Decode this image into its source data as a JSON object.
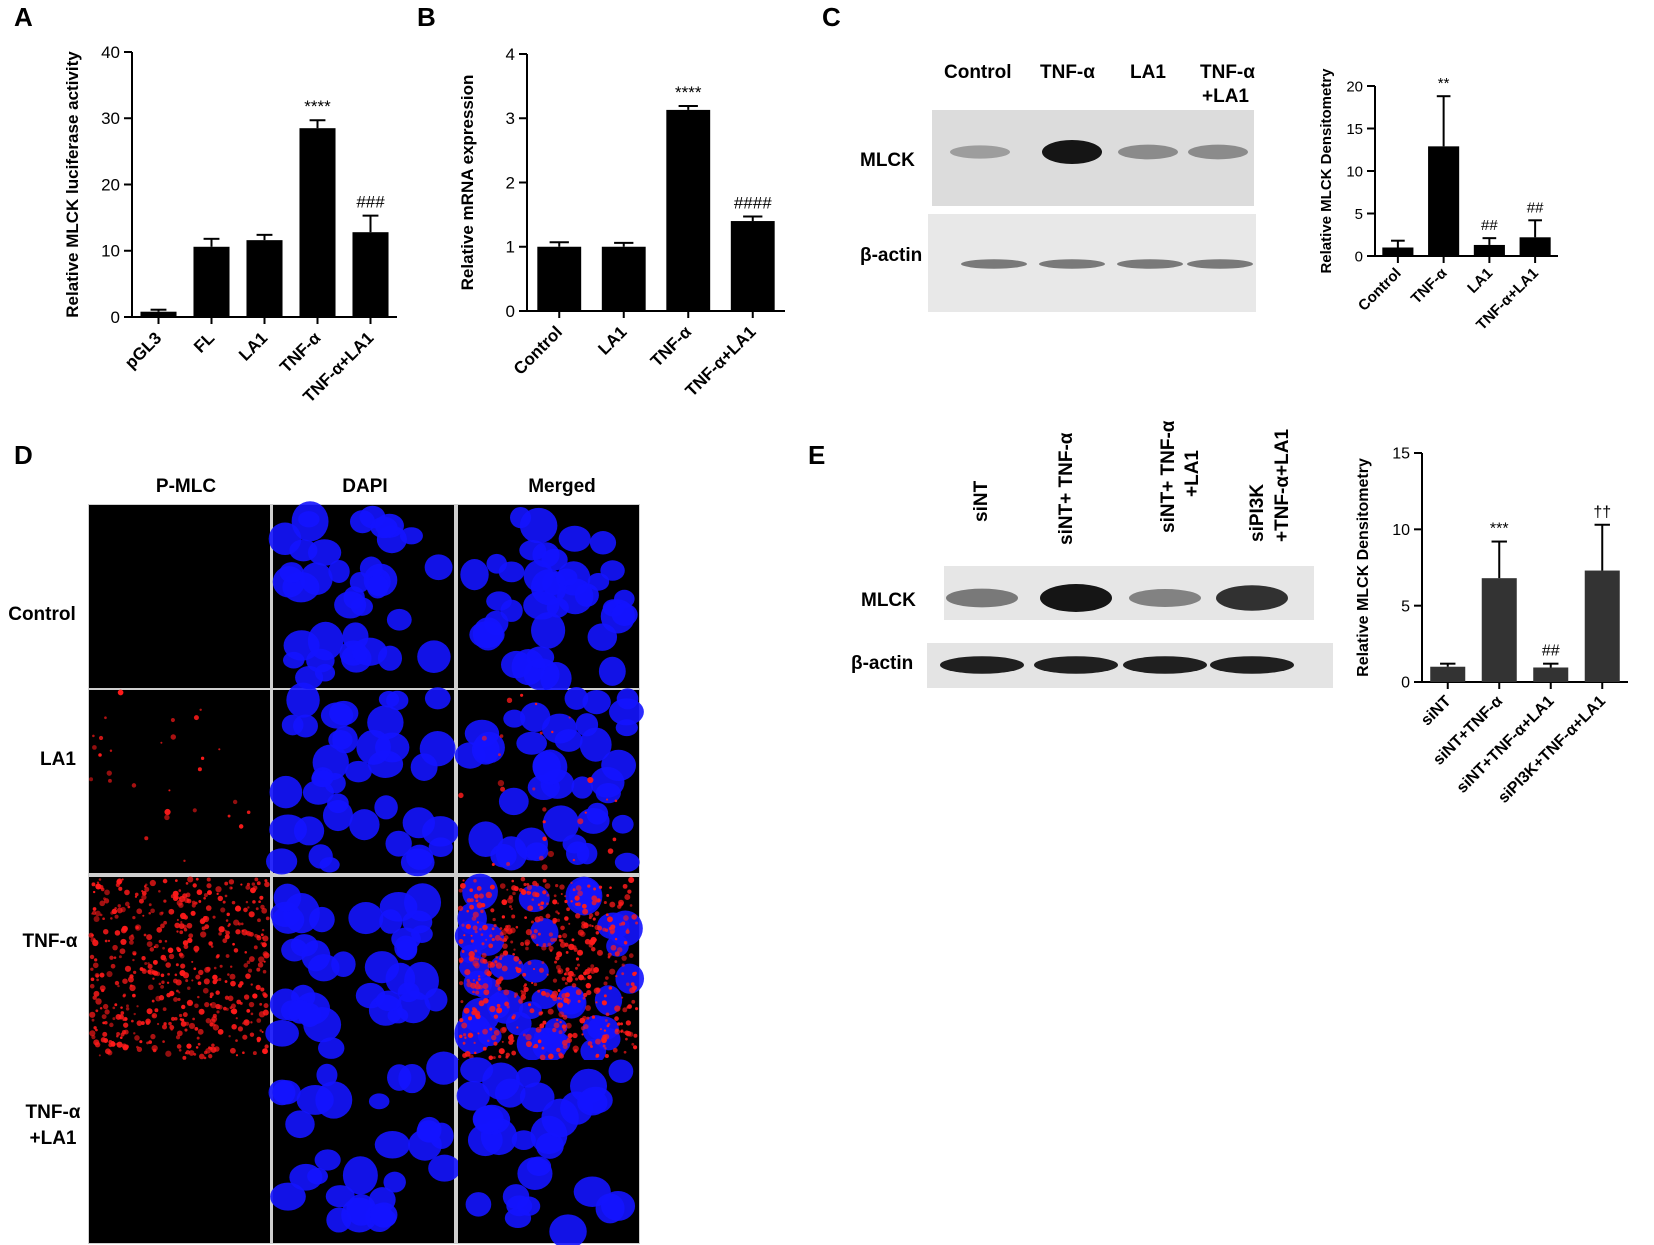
{
  "panels": {
    "A": "A",
    "B": "B",
    "C": "C",
    "D": "D",
    "E": "E"
  },
  "chart_data": [
    {
      "id": "A",
      "type": "bar",
      "categories": [
        "pGL3",
        "FL",
        "LA1",
        "TNF-α",
        "TNF-α+LA1"
      ],
      "values": [
        0.8,
        10.6,
        11.6,
        28.5,
        12.8
      ],
      "errors": [
        0.3,
        1.2,
        0.8,
        1.2,
        2.5
      ],
      "annotations": [
        "",
        "",
        "",
        "****",
        "###"
      ],
      "ylabel": "Relative MLCK luciferase activity",
      "ylim": [
        0,
        40
      ],
      "yticks": [
        0,
        10,
        20,
        30,
        40
      ],
      "bar_color": "#000000"
    },
    {
      "id": "B",
      "type": "bar",
      "categories": [
        "Control",
        "LA1",
        "TNF-α",
        "TNF-α+LA1"
      ],
      "values": [
        1.0,
        1.0,
        3.13,
        1.4
      ],
      "errors": [
        0.07,
        0.06,
        0.06,
        0.07
      ],
      "annotations": [
        "",
        "",
        "****",
        "####"
      ],
      "ylabel": "Relative mRNA expression",
      "ylim": [
        0,
        4
      ],
      "yticks": [
        0,
        1,
        2,
        3,
        4
      ],
      "bar_color": "#000000"
    },
    {
      "id": "C",
      "type": "bar",
      "categories": [
        "Control",
        "TNF-α",
        "LA1",
        "TNF-α+LA1"
      ],
      "values": [
        1.0,
        12.9,
        1.3,
        2.2
      ],
      "errors": [
        0.8,
        5.9,
        0.8,
        2.0
      ],
      "annotations": [
        "",
        "**",
        "##",
        "##"
      ],
      "ylabel": "Relative MLCK Densitometry",
      "ylim": [
        0,
        20
      ],
      "yticks": [
        0,
        5,
        10,
        15,
        20
      ],
      "bar_color": "#000000"
    },
    {
      "id": "E",
      "type": "bar",
      "categories": [
        "siNT",
        "siNT+TNF-α",
        "siNT+TNF-α+LA1",
        "siPI3K+TNF-α+LA1"
      ],
      "values": [
        1.0,
        6.8,
        0.95,
        7.3
      ],
      "errors": [
        0.2,
        2.4,
        0.25,
        3.0
      ],
      "annotations": [
        "",
        "***",
        "##",
        "††"
      ],
      "ylabel": "Relative MLCK Densitometry",
      "ylim": [
        0,
        15
      ],
      "yticks": [
        0,
        5,
        10,
        15
      ],
      "bar_color": "#333333"
    }
  ],
  "blot_c": {
    "lanes": [
      "Control",
      "TNF-α",
      "LA1",
      "TNF-α",
      "+LA1"
    ],
    "rows": [
      "MLCK",
      "β-actin"
    ],
    "mlck_intensity": [
      0.25,
      1.0,
      0.35,
      0.35
    ],
    "actin_intensity": [
      0.45,
      0.45,
      0.45,
      0.45
    ]
  },
  "blot_e": {
    "lanes": [
      "siNT",
      "siNT+ TNF-α",
      "siNT+ TNF-α",
      "+LA1",
      "siPI3K",
      "+TNF-α+LA1"
    ],
    "rows": [
      "MLCK",
      "β-actin"
    ],
    "mlck_intensity": [
      0.45,
      1.0,
      0.4,
      0.85
    ],
    "actin_intensity": [
      0.95,
      0.95,
      0.95,
      0.95
    ]
  },
  "microscopy_d": {
    "columns": [
      "P-MLC",
      "DAPI",
      "Merged"
    ],
    "rows": [
      "Control",
      "LA1",
      "TNF-α",
      "TNF-α",
      "+LA1"
    ],
    "red_level": [
      0.0,
      0.05,
      1.0,
      0.0
    ],
    "blue_level": [
      1.0,
      1.0,
      1.0,
      0.8
    ],
    "colors": {
      "red": "#ff1a1a",
      "blue": "#1414ff",
      "background": "#000000"
    }
  }
}
